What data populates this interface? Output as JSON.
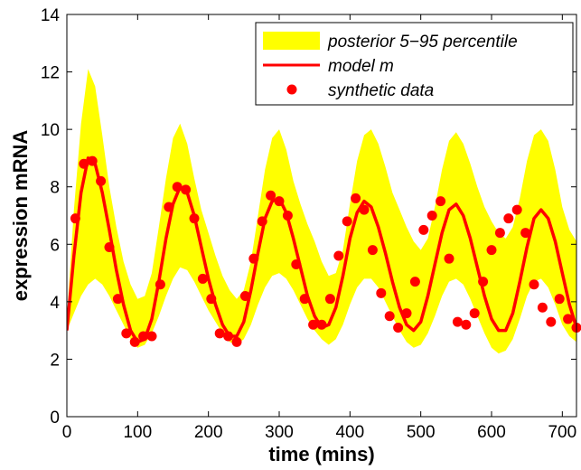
{
  "chart_data": {
    "type": "line",
    "xlabel": "time (mins)",
    "ylabel": "expression mRNA",
    "xlim": [
      0,
      720
    ],
    "ylim": [
      0,
      14
    ],
    "xticks": [
      "0",
      "100",
      "200",
      "300",
      "400",
      "500",
      "600",
      "700"
    ],
    "yticks": [
      "0",
      "2",
      "4",
      "6",
      "8",
      "10",
      "12",
      "14"
    ],
    "grid": false,
    "legend_position": "top-right",
    "legend": [
      {
        "label": "posterior 5−95 percentile",
        "kind": "band",
        "color": "#ffff00"
      },
      {
        "label": "model m",
        "kind": "line",
        "color": "#ff0000"
      },
      {
        "label": "synthetic data",
        "kind": "marker",
        "color": "#ff0000"
      }
    ],
    "series": [
      {
        "name": "posterior 5−95 percentile",
        "kind": "band",
        "color": "#ffff00",
        "x": [
          0,
          10,
          20,
          30,
          40,
          50,
          60,
          70,
          80,
          90,
          100,
          110,
          120,
          130,
          140,
          150,
          160,
          170,
          180,
          190,
          200,
          210,
          220,
          230,
          240,
          250,
          260,
          270,
          280,
          290,
          300,
          310,
          320,
          330,
          340,
          350,
          360,
          370,
          380,
          390,
          400,
          410,
          420,
          430,
          440,
          450,
          460,
          470,
          480,
          490,
          500,
          510,
          520,
          530,
          540,
          550,
          560,
          570,
          580,
          590,
          600,
          610,
          620,
          630,
          640,
          650,
          660,
          670,
          680,
          690,
          700,
          710,
          720
        ],
        "lower": [
          3.0,
          3.6,
          4.2,
          4.6,
          4.8,
          4.6,
          4.2,
          3.7,
          3.2,
          2.7,
          2.4,
          2.5,
          2.9,
          3.5,
          4.2,
          4.8,
          5.2,
          5.1,
          4.7,
          4.2,
          3.7,
          3.3,
          2.9,
          2.6,
          2.5,
          2.7,
          3.2,
          3.9,
          4.5,
          4.9,
          5.0,
          4.8,
          4.4,
          3.9,
          3.4,
          3.0,
          2.7,
          2.5,
          2.7,
          3.2,
          3.9,
          4.5,
          4.8,
          4.8,
          4.5,
          4.0,
          3.5,
          3.0,
          2.6,
          2.4,
          2.5,
          2.9,
          3.5,
          4.2,
          4.7,
          4.8,
          4.6,
          4.1,
          3.5,
          2.9,
          2.4,
          2.2,
          2.3,
          2.7,
          3.4,
          4.2,
          4.7,
          4.8,
          4.5,
          3.9,
          3.2,
          2.8,
          2.6
        ],
        "upper": [
          3.4,
          7.2,
          10.2,
          12.1,
          11.5,
          9.8,
          8.0,
          6.6,
          5.4,
          4.6,
          4.1,
          4.2,
          5.0,
          6.6,
          8.3,
          9.7,
          10.2,
          9.5,
          8.3,
          7.2,
          6.4,
          5.6,
          4.9,
          4.4,
          4.1,
          4.4,
          5.4,
          7.0,
          8.6,
          9.7,
          10.0,
          9.3,
          8.2,
          7.4,
          6.7,
          6.1,
          5.4,
          4.9,
          5.0,
          5.8,
          7.4,
          8.9,
          9.8,
          10.0,
          9.5,
          8.7,
          7.8,
          7.2,
          6.6,
          6.1,
          5.8,
          6.2,
          7.3,
          8.6,
          9.6,
          9.9,
          9.5,
          8.8,
          8.0,
          7.3,
          6.8,
          6.4,
          6.2,
          6.6,
          7.6,
          8.9,
          9.8,
          10.0,
          9.6,
          8.6,
          7.3,
          6.5,
          6.1
        ]
      },
      {
        "name": "model m",
        "kind": "line",
        "color": "#ff0000",
        "x": [
          0,
          10,
          20,
          30,
          40,
          50,
          60,
          70,
          80,
          90,
          100,
          110,
          120,
          130,
          140,
          150,
          160,
          170,
          180,
          190,
          200,
          210,
          220,
          230,
          240,
          250,
          260,
          270,
          280,
          290,
          300,
          310,
          320,
          330,
          340,
          350,
          360,
          370,
          380,
          390,
          400,
          410,
          420,
          430,
          440,
          450,
          460,
          470,
          480,
          490,
          500,
          510,
          520,
          530,
          540,
          550,
          560,
          570,
          580,
          590,
          600,
          610,
          620,
          630,
          640,
          650,
          660,
          670,
          680,
          690,
          700,
          710,
          720
        ],
        "y": [
          3.0,
          5.6,
          7.8,
          9.0,
          8.8,
          7.8,
          6.5,
          5.1,
          3.9,
          3.0,
          2.6,
          2.7,
          3.4,
          4.7,
          6.2,
          7.4,
          8.0,
          7.8,
          7.0,
          5.9,
          4.8,
          3.9,
          3.2,
          2.8,
          2.8,
          3.3,
          4.4,
          5.7,
          6.9,
          7.5,
          7.6,
          7.1,
          6.2,
          5.2,
          4.2,
          3.5,
          3.1,
          3.2,
          3.8,
          4.9,
          6.2,
          7.1,
          7.5,
          7.3,
          6.6,
          5.7,
          4.7,
          3.8,
          3.2,
          3.0,
          3.3,
          4.2,
          5.3,
          6.4,
          7.2,
          7.4,
          7.0,
          6.2,
          5.2,
          4.2,
          3.4,
          3.0,
          3.0,
          3.6,
          4.7,
          5.9,
          6.9,
          7.2,
          6.9,
          6.1,
          5.0,
          3.9,
          3.1
        ]
      },
      {
        "name": "synthetic data",
        "kind": "scatter",
        "color": "#ff0000",
        "x": [
          12,
          24,
          36,
          48,
          60,
          72,
          84,
          96,
          108,
          120,
          132,
          144,
          156,
          168,
          180,
          192,
          204,
          216,
          228,
          240,
          252,
          264,
          276,
          288,
          300,
          312,
          324,
          336,
          348,
          360,
          372,
          384,
          396,
          408,
          420,
          432,
          444,
          456,
          468,
          480,
          492,
          504,
          516,
          528,
          540,
          552,
          564,
          576,
          588,
          600,
          612,
          624,
          636,
          648,
          660,
          672,
          684,
          696,
          708,
          720
        ],
        "y": [
          6.9,
          8.8,
          8.9,
          8.2,
          5.9,
          4.1,
          2.9,
          2.6,
          2.8,
          2.8,
          4.6,
          7.3,
          8.0,
          7.9,
          6.9,
          4.8,
          4.1,
          2.9,
          2.8,
          2.6,
          4.2,
          5.5,
          6.8,
          7.7,
          7.5,
          7.0,
          5.3,
          4.1,
          3.2,
          3.2,
          4.1,
          5.6,
          6.8,
          7.6,
          7.2,
          5.8,
          4.3,
          3.5,
          3.1,
          3.6,
          4.7,
          6.5,
          7.0,
          7.5,
          5.5,
          3.3,
          3.2,
          3.6,
          4.7,
          5.8,
          6.4,
          6.9,
          7.2,
          6.4,
          4.6,
          3.8,
          3.3,
          4.1,
          3.4,
          3.1
        ]
      }
    ]
  }
}
